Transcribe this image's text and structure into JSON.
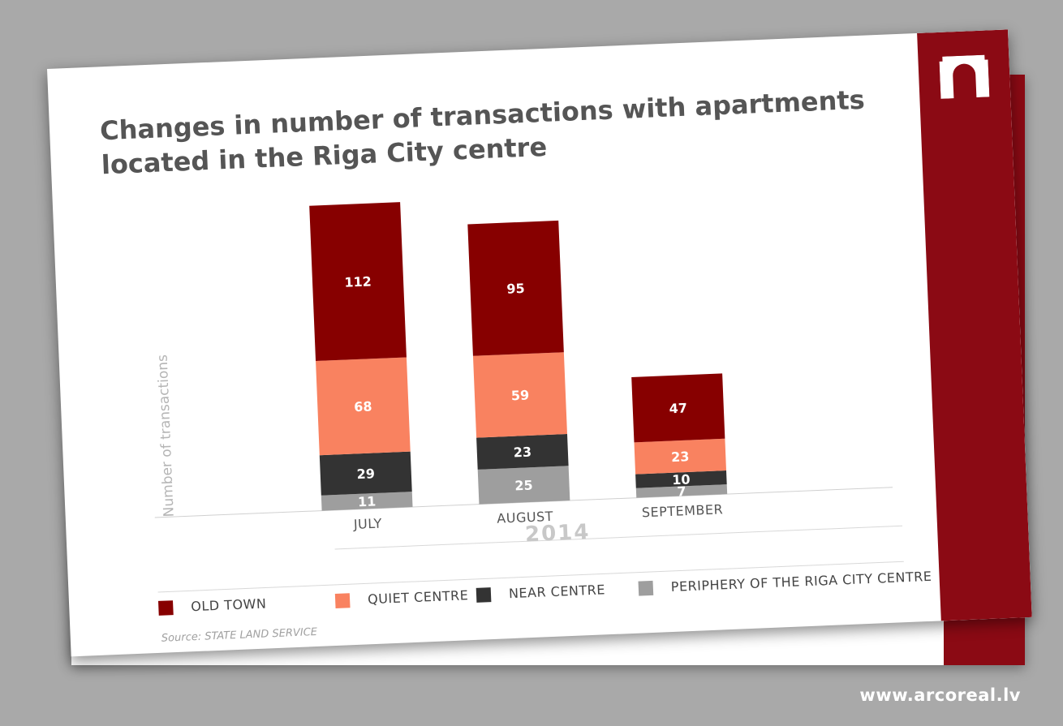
{
  "chart_data": {
    "type": "bar",
    "stacked": true,
    "title": "Changes in number of transactions with apartments located in the Riga City centre",
    "ylabel": "Number of transactions",
    "xlabel": "2014",
    "categories": [
      "JULY",
      "AUGUST",
      "SEPTEMBER"
    ],
    "series": [
      {
        "name": "PERIPHERY OF THE RIGA CITY CENTRE",
        "values": [
          11,
          25,
          7
        ],
        "color": "#9e9e9e"
      },
      {
        "name": "NEAR CENTRE",
        "values": [
          29,
          23,
          10
        ],
        "color": "#333333"
      },
      {
        "name": "QUIET CENTRE",
        "values": [
          68,
          59,
          23
        ],
        "color": "#f98260"
      },
      {
        "name": "OLD TOWN",
        "values": [
          112,
          95,
          47
        ],
        "color": "#870000"
      }
    ],
    "legend_order": [
      "OLD TOWN",
      "QUIET CENTRE",
      "NEAR CENTRE",
      "PERIPHERY OF THE RIGA CITY CENTRE"
    ],
    "grid": false,
    "legend_position": "bottom"
  },
  "source": "Source: STATE LAND SERVICE",
  "footer_url": "www.arcoreal.lv",
  "colors": {
    "brand": "#8b0a14",
    "background": "#a9a9a9"
  }
}
